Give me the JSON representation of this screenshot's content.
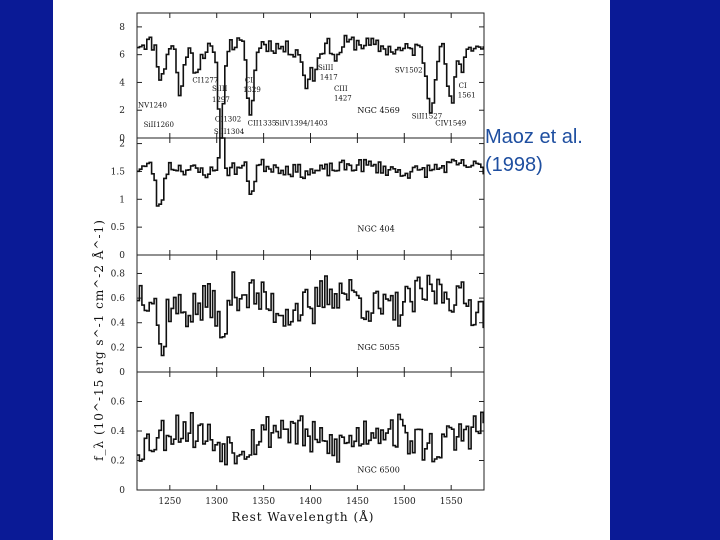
{
  "caption": {
    "line1": "Maoz et al.",
    "line2": "(1998)"
  },
  "chart_data": {
    "type": "line",
    "xlabel": "Rest Wavelength (Å)",
    "ylabel": "f_λ (10^-15 erg s^-1 cm^-2 Å^-1)",
    "xlim": [
      1215,
      1585
    ],
    "x_ticks": [
      "1250",
      "1300",
      "1350",
      "1400",
      "1450",
      "1500",
      "1550"
    ],
    "panels": [
      {
        "name": "NGC 4569",
        "ylim": [
          0,
          9
        ],
        "y_ticks": [
          "0",
          "2",
          "4",
          "6",
          "8"
        ],
        "base": 6.6,
        "noise": 0.55,
        "seed": 11,
        "features": [
          [
            1240,
            -2.6,
            5
          ],
          [
            1260,
            -3.6,
            4
          ],
          [
            1277,
            -1.4,
            5
          ],
          [
            1302,
            -2.5,
            5
          ],
          [
            1304,
            -4.8,
            3
          ],
          [
            1335,
            -5.2,
            5
          ],
          [
            1394,
            -2.8,
            4
          ],
          [
            1403,
            -2.0,
            4
          ],
          [
            1427,
            -1.2,
            4
          ],
          [
            1527,
            -4.4,
            6
          ],
          [
            1549,
            -4.5,
            6
          ],
          [
            1561,
            -1.6,
            4
          ]
        ],
        "labels": [
          {
            "text": "NV1240",
            "x": 1216,
            "y": 2.2
          },
          {
            "text": "SiII1260",
            "x": 1222,
            "y": 0.8
          },
          {
            "text": "CI1277",
            "x": 1274,
            "y": 4.0
          },
          {
            "text": "SiIII",
            "x": 1295,
            "y": 3.4
          },
          {
            "text": "1297",
            "x": 1295,
            "y": 2.6
          },
          {
            "text": "OI1302",
            "x": 1298,
            "y": 1.2
          },
          {
            "text": "SiII1304",
            "x": 1297,
            "y": 0.3
          },
          {
            "text": "CI",
            "x": 1330,
            "y": 4.0
          },
          {
            "text": "1329",
            "x": 1328,
            "y": 3.3
          },
          {
            "text": "CII1335",
            "x": 1333,
            "y": 0.9
          },
          {
            "text": "SiIV1394/1403",
            "x": 1362,
            "y": 0.9
          },
          {
            "text": "SiIII",
            "x": 1408,
            "y": 4.9
          },
          {
            "text": "1417",
            "x": 1410,
            "y": 4.2
          },
          {
            "text": "CIII",
            "x": 1425,
            "y": 3.4
          },
          {
            "text": "1427",
            "x": 1425,
            "y": 2.7
          },
          {
            "text": "SV1502",
            "x": 1490,
            "y": 4.7
          },
          {
            "text": "SiII1527",
            "x": 1508,
            "y": 1.4
          },
          {
            "text": "CIV1549",
            "x": 1533,
            "y": 0.9
          },
          {
            "text": "CI",
            "x": 1558,
            "y": 3.6
          },
          {
            "text": "1561",
            "x": 1557,
            "y": 2.9
          }
        ],
        "galaxy": {
          "text": "NGC 4569",
          "x": 1450,
          "y": 1.8
        }
      },
      {
        "name": "NGC 404",
        "ylim": [
          0,
          2.1
        ],
        "y_ticks": [
          "0",
          "0.5",
          "1",
          "1.5",
          "2"
        ],
        "base": 1.55,
        "noise": 0.12,
        "seed": 23,
        "features": [
          [
            1238,
            -0.8,
            5
          ],
          [
            1304,
            0.9,
            3
          ],
          [
            1336,
            -0.5,
            4
          ]
        ],
        "labels": [],
        "galaxy": {
          "text": "NGC 404",
          "x": 1450,
          "y": 0.42
        }
      },
      {
        "name": "NGC 5055",
        "ylim": [
          0,
          0.95
        ],
        "y_ticks": [
          "0",
          "0.2",
          "0.4",
          "0.6",
          "0.8"
        ],
        "base": 0.58,
        "noise": 0.16,
        "seed": 37,
        "features": [
          [
            1240,
            -0.5,
            4
          ],
          [
            1305,
            -0.45,
            5
          ],
          [
            1400,
            -0.2,
            4
          ]
        ],
        "labels": [],
        "galaxy": {
          "text": "NGC 5055",
          "x": 1450,
          "y": 0.18
        }
      },
      {
        "name": "NGC 6500",
        "ylim": [
          0,
          0.8
        ],
        "y_ticks": [
          "0",
          "0.2",
          "0.4",
          "0.6"
        ],
        "base": 0.36,
        "noise": 0.13,
        "seed": 53,
        "features": [],
        "labels": [],
        "galaxy": {
          "text": "NGC 6500",
          "x": 1450,
          "y": 0.12
        }
      }
    ]
  }
}
